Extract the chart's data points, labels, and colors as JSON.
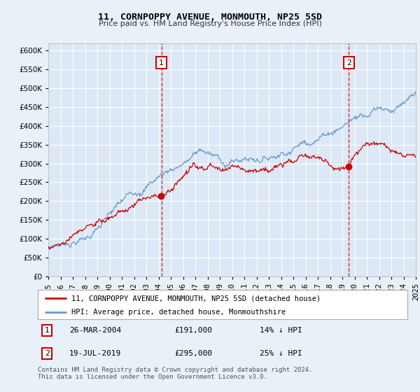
{
  "title": "11, CORNPOPPY AVENUE, MONMOUTH, NP25 5SD",
  "subtitle": "Price paid vs. HM Land Registry's House Price Index (HPI)",
  "y_values": [
    0,
    50000,
    100000,
    150000,
    200000,
    250000,
    300000,
    350000,
    400000,
    450000,
    500000,
    550000,
    600000
  ],
  "x_start_year": 1995,
  "x_end_year": 2025,
  "sale1_date": "26-MAR-2004",
  "sale1_price": 191000,
  "sale1_label": "14% ↓ HPI",
  "sale1_x": 2004.23,
  "sale2_date": "19-JUL-2019",
  "sale2_price": 295000,
  "sale2_label": "25% ↓ HPI",
  "sale2_x": 2019.54,
  "legend1_text": "11, CORNPOPPY AVENUE, MONMOUTH, NP25 5SD (detached house)",
  "legend2_text": "HPI: Average price, detached house, Monmouthshire",
  "footer_text": "Contains HM Land Registry data © Crown copyright and database right 2024.\nThis data is licensed under the Open Government Licence v3.0.",
  "hpi_color": "#6699cc",
  "price_color": "#cc0000",
  "bg_color": "#e8f0f8",
  "plot_bg": "#dce8f5",
  "grid_color": "#ffffff",
  "annotation_box_color": "#cc0000"
}
